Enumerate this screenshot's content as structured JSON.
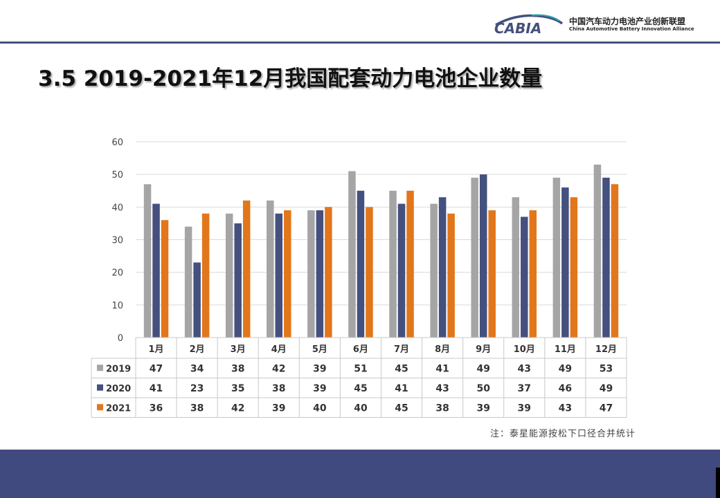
{
  "header": {
    "logo_text": "CABIA",
    "org_name_cn": "中国汽车动力电池产业创新联盟",
    "org_name_en": "China Automotive Battery Innovation Alliance"
  },
  "slide": {
    "title": "3.5 2019-2021年12月我国配套动力电池企业数量",
    "note": "注：泰星能源按松下口径合并统计"
  },
  "colors": {
    "s2019": "#a5a5a5",
    "s2020": "#44507e",
    "s2021": "#e2761b",
    "accent": "#44507e"
  },
  "chart_data": {
    "type": "bar",
    "categories": [
      "1月",
      "2月",
      "3月",
      "4月",
      "5月",
      "6月",
      "7月",
      "8月",
      "9月",
      "10月",
      "11月",
      "12月"
    ],
    "series": [
      {
        "name": "2019",
        "values": [
          47,
          34,
          38,
          42,
          39,
          51,
          45,
          41,
          49,
          43,
          49,
          53
        ]
      },
      {
        "name": "2020",
        "values": [
          41,
          23,
          35,
          38,
          39,
          45,
          41,
          43,
          50,
          37,
          46,
          49
        ]
      },
      {
        "name": "2021",
        "values": [
          36,
          38,
          42,
          39,
          40,
          40,
          45,
          38,
          39,
          39,
          43,
          47
        ]
      }
    ],
    "ylim": [
      0,
      60
    ],
    "yticks": [
      "0",
      "10",
      "20",
      "30",
      "40",
      "50",
      "60"
    ],
    "grid": true,
    "data_table": true
  }
}
